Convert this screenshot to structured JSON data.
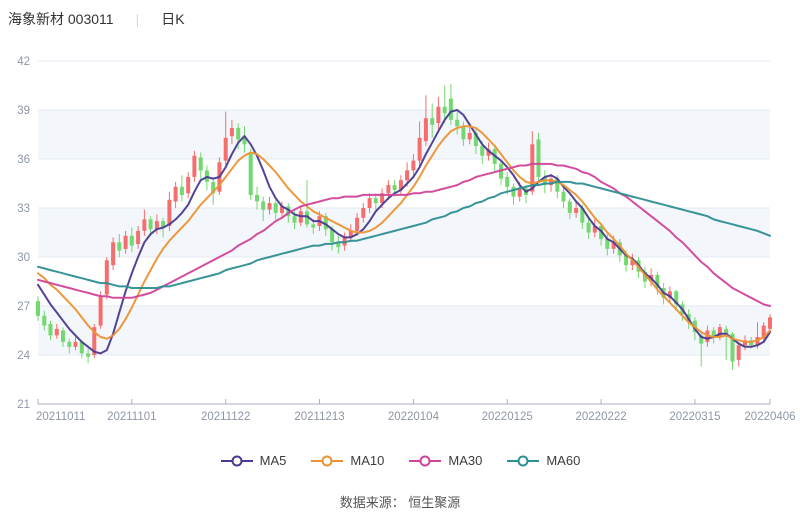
{
  "header": {
    "stock_title": "海象新材 003011",
    "separator": "|",
    "period_label": "日K"
  },
  "footer": {
    "source_label": "数据来源： 恒生聚源"
  },
  "legend": {
    "items": [
      {
        "label": "MA5",
        "color": "#483a8f"
      },
      {
        "label": "MA10",
        "color": "#ed9234"
      },
      {
        "label": "MA30",
        "color": "#d0439a"
      },
      {
        "label": "MA60",
        "color": "#2d8e93"
      }
    ]
  },
  "chart_data": {
    "type": "candlestick",
    "title": "海象新材 003011 日K",
    "convention": "red = close >= open (up), green = close < open (down)",
    "y_axis": {
      "min": 21,
      "max": 42,
      "ticks": [
        21,
        24,
        27,
        30,
        33,
        36,
        39,
        42
      ],
      "shaded_bands": [
        [
          39,
          36
        ],
        [
          33,
          30
        ],
        [
          27,
          24
        ]
      ]
    },
    "x_axis": {
      "tick_labels": [
        "20211011",
        "20211101",
        "20211122",
        "20211213",
        "20220104",
        "20220125",
        "20220222",
        "20220315",
        "20220406"
      ],
      "tick_day_indices": [
        0,
        15,
        30,
        45,
        60,
        75,
        90,
        105,
        117
      ]
    },
    "colors": {
      "up": "#f46e6e",
      "down": "#73d870",
      "ma5": "#483a8f",
      "ma10": "#ed9234",
      "ma30": "#d0439a",
      "ma60": "#2d8e93",
      "grid": "#e3e9f3",
      "band": "#f3f6fb",
      "axis_line": "#aab0bc",
      "axis_label": "#8d96a8"
    },
    "candle_format": "[open, close, low, high]",
    "candles": [
      [
        27.3,
        26.4,
        26.1,
        27.6
      ],
      [
        26.4,
        25.8,
        25.5,
        26.7
      ],
      [
        25.9,
        25.2,
        24.9,
        26.1
      ],
      [
        25.2,
        25.6,
        25.0,
        25.9
      ],
      [
        25.5,
        24.8,
        24.5,
        25.7
      ],
      [
        24.8,
        24.5,
        24.1,
        25.0
      ],
      [
        24.5,
        24.8,
        24.3,
        25.1
      ],
      [
        24.8,
        24.1,
        23.8,
        24.9
      ],
      [
        24.1,
        23.9,
        23.5,
        24.4
      ],
      [
        24.0,
        25.7,
        23.8,
        25.9
      ],
      [
        25.8,
        27.6,
        25.6,
        27.9
      ],
      [
        27.7,
        29.8,
        27.4,
        30.0
      ],
      [
        29.5,
        30.9,
        29.2,
        31.2
      ],
      [
        30.9,
        30.4,
        30.0,
        31.4
      ],
      [
        30.5,
        31.3,
        30.2,
        31.6
      ],
      [
        31.3,
        30.7,
        30.3,
        31.8
      ],
      [
        30.8,
        31.6,
        30.5,
        31.9
      ],
      [
        31.6,
        32.3,
        31.3,
        32.9
      ],
      [
        32.3,
        31.7,
        31.3,
        32.5
      ],
      [
        31.7,
        32.2,
        31.4,
        32.6
      ],
      [
        32.2,
        31.8,
        31.2,
        32.4
      ],
      [
        31.9,
        33.5,
        31.6,
        34.0
      ],
      [
        33.4,
        34.3,
        33.0,
        34.6
      ],
      [
        34.3,
        33.8,
        33.4,
        35.0
      ],
      [
        33.9,
        34.9,
        33.6,
        35.2
      ],
      [
        34.9,
        36.2,
        34.6,
        36.5
      ],
      [
        36.1,
        35.3,
        34.8,
        36.4
      ],
      [
        35.3,
        34.6,
        34.1,
        35.6
      ],
      [
        34.6,
        33.9,
        33.2,
        34.8
      ],
      [
        34.0,
        35.8,
        33.8,
        36.1
      ],
      [
        35.9,
        37.3,
        35.6,
        38.9
      ],
      [
        37.4,
        37.9,
        36.9,
        38.4
      ],
      [
        37.9,
        37.2,
        36.6,
        38.2
      ],
      [
        37.3,
        36.9,
        36.4,
        38.0
      ],
      [
        36.4,
        33.8,
        33.5,
        36.6
      ],
      [
        33.8,
        33.4,
        32.9,
        34.3
      ],
      [
        33.4,
        32.9,
        32.2,
        33.7
      ],
      [
        32.9,
        33.3,
        32.6,
        33.7
      ],
      [
        33.3,
        32.7,
        32.3,
        33.5
      ],
      [
        32.7,
        33.1,
        32.4,
        33.4
      ],
      [
        33.1,
        32.5,
        32.1,
        33.3
      ],
      [
        32.5,
        32.1,
        31.7,
        32.8
      ],
      [
        32.1,
        32.8,
        31.9,
        33.1
      ],
      [
        32.8,
        32.0,
        31.8,
        34.7
      ],
      [
        32.0,
        31.8,
        31.4,
        32.3
      ],
      [
        31.9,
        32.5,
        31.6,
        32.8
      ],
      [
        32.5,
        31.7,
        31.3,
        32.7
      ],
      [
        31.7,
        30.9,
        30.4,
        31.9
      ],
      [
        30.9,
        30.6,
        30.2,
        31.3
      ],
      [
        30.7,
        31.2,
        30.4,
        31.5
      ],
      [
        31.2,
        31.6,
        30.9,
        32.0
      ],
      [
        31.6,
        32.4,
        31.3,
        32.7
      ],
      [
        32.4,
        33.0,
        32.1,
        33.3
      ],
      [
        33.0,
        33.6,
        32.7,
        33.9
      ],
      [
        33.6,
        33.3,
        32.9,
        33.9
      ],
      [
        33.3,
        33.9,
        33.0,
        34.2
      ],
      [
        33.9,
        34.4,
        33.5,
        34.7
      ],
      [
        34.4,
        34.1,
        33.7,
        34.7
      ],
      [
        34.1,
        34.7,
        33.8,
        35.0
      ],
      [
        34.7,
        35.3,
        34.3,
        35.8
      ],
      [
        35.3,
        35.9,
        34.9,
        36.3
      ],
      [
        35.9,
        37.3,
        35.6,
        38.3
      ],
      [
        37.1,
        38.5,
        36.8,
        39.9
      ],
      [
        38.5,
        38.1,
        37.3,
        39.4
      ],
      [
        38.2,
        39.2,
        37.8,
        39.8
      ],
      [
        39.2,
        38.8,
        38.2,
        40.5
      ],
      [
        39.7,
        38.4,
        38.1,
        40.6
      ],
      [
        38.4,
        38.0,
        37.5,
        38.9
      ],
      [
        38.0,
        37.2,
        36.8,
        38.3
      ],
      [
        37.2,
        37.6,
        36.9,
        38.0
      ],
      [
        37.6,
        36.8,
        36.3,
        37.9
      ],
      [
        36.8,
        36.2,
        35.7,
        37.1
      ],
      [
        36.2,
        36.6,
        35.9,
        37.0
      ],
      [
        36.6,
        35.7,
        35.2,
        36.8
      ],
      [
        35.7,
        34.8,
        34.4,
        35.9
      ],
      [
        34.9,
        34.3,
        33.8,
        35.2
      ],
      [
        34.3,
        33.7,
        33.2,
        34.5
      ],
      [
        33.7,
        34.2,
        33.4,
        34.6
      ],
      [
        34.2,
        33.8,
        33.3,
        34.4
      ],
      [
        34.0,
        36.9,
        33.8,
        37.7
      ],
      [
        37.2,
        34.9,
        34.5,
        37.6
      ],
      [
        34.9,
        34.4,
        33.9,
        35.3
      ],
      [
        34.4,
        34.8,
        34.0,
        35.1
      ],
      [
        34.8,
        34.0,
        33.6,
        35.0
      ],
      [
        34.0,
        33.4,
        33.0,
        34.3
      ],
      [
        33.4,
        32.7,
        32.3,
        33.6
      ],
      [
        32.7,
        33.0,
        32.4,
        33.4
      ],
      [
        33.0,
        32.1,
        31.7,
        33.2
      ],
      [
        32.1,
        31.5,
        31.1,
        32.4
      ],
      [
        31.5,
        31.9,
        31.2,
        32.3
      ],
      [
        31.9,
        31.1,
        30.7,
        32.1
      ],
      [
        31.1,
        30.5,
        30.1,
        31.4
      ],
      [
        30.5,
        30.9,
        30.2,
        31.3
      ],
      [
        30.9,
        30.1,
        29.7,
        31.1
      ],
      [
        30.1,
        29.5,
        29.1,
        30.4
      ],
      [
        29.5,
        29.8,
        29.2,
        30.2
      ],
      [
        29.8,
        29.1,
        28.7,
        30.0
      ],
      [
        29.1,
        28.5,
        28.1,
        29.4
      ],
      [
        28.5,
        28.9,
        28.2,
        29.3
      ],
      [
        28.9,
        28.1,
        27.7,
        29.1
      ],
      [
        28.1,
        27.5,
        27.1,
        28.4
      ],
      [
        27.5,
        27.9,
        27.2,
        28.2
      ],
      [
        27.9,
        27.1,
        26.7,
        28.0
      ],
      [
        27.1,
        26.5,
        26.1,
        27.3
      ],
      [
        26.5,
        26.1,
        25.6,
        26.8
      ],
      [
        26.1,
        25.4,
        24.9,
        26.3
      ],
      [
        25.2,
        24.7,
        23.3,
        25.5
      ],
      [
        24.8,
        25.5,
        24.5,
        25.8
      ],
      [
        25.5,
        25.1,
        24.7,
        25.7
      ],
      [
        25.1,
        25.7,
        24.9,
        25.9
      ],
      [
        25.6,
        25.2,
        23.7,
        25.8
      ],
      [
        25.3,
        23.6,
        23.1,
        25.4
      ],
      [
        23.7,
        24.6,
        23.3,
        24.8
      ],
      [
        24.6,
        24.9,
        24.3,
        25.2
      ],
      [
        24.9,
        24.6,
        24.4,
        25.1
      ],
      [
        24.6,
        25.1,
        24.4,
        26.0
      ],
      [
        25.0,
        25.8,
        24.8,
        26.0
      ],
      [
        25.6,
        26.3,
        25.3,
        26.5
      ]
    ],
    "series": [
      {
        "name": "MA5",
        "color": "#483a8f",
        "values": [
          28.3,
          27.7,
          27.1,
          26.6,
          26.1,
          25.6,
          25.2,
          24.8,
          24.5,
          24.2,
          24.1,
          24.3,
          25.3,
          26.6,
          27.9,
          29.0,
          30.0,
          30.9,
          31.4,
          31.7,
          31.8,
          32.0,
          32.3,
          32.7,
          33.2,
          34.0,
          34.7,
          34.9,
          34.8,
          34.9,
          35.5,
          36.3,
          37.0,
          37.4,
          36.9,
          36.2,
          35.3,
          34.3,
          33.6,
          33.1,
          32.9,
          32.6,
          32.5,
          32.5,
          32.2,
          32.2,
          32.0,
          31.7,
          31.4,
          31.2,
          31.2,
          31.4,
          31.7,
          32.2,
          32.8,
          33.2,
          33.6,
          33.9,
          34.1,
          34.5,
          34.9,
          35.5,
          36.3,
          37.0,
          37.7,
          38.4,
          38.9,
          39.0,
          38.7,
          38.1,
          37.5,
          36.9,
          36.5,
          36.2,
          35.9,
          35.5,
          35.0,
          34.4,
          34.0,
          34.2,
          34.6,
          34.9,
          35.0,
          34.8,
          34.3,
          33.9,
          33.4,
          33.0,
          32.4,
          31.9,
          31.6,
          31.1,
          30.9,
          30.5,
          30.1,
          29.9,
          29.5,
          29.0,
          28.7,
          28.3,
          27.8,
          27.6,
          27.2,
          26.8,
          26.2,
          25.6,
          25.1,
          25.0,
          25.1,
          25.3,
          25.3,
          25.0,
          24.7,
          24.5,
          24.5,
          24.6,
          24.8,
          25.4
        ]
      },
      {
        "name": "MA10",
        "color": "#ed9234",
        "values": [
          29.0,
          28.7,
          28.3,
          28.0,
          27.6,
          27.2,
          26.8,
          26.3,
          25.8,
          25.4,
          25.1,
          25.0,
          25.2,
          25.6,
          26.2,
          26.9,
          27.7,
          28.5,
          29.2,
          29.9,
          30.5,
          31.0,
          31.4,
          31.8,
          32.2,
          32.7,
          33.2,
          33.6,
          34.0,
          34.4,
          34.9,
          35.4,
          35.9,
          36.2,
          36.4,
          36.3,
          36.0,
          35.6,
          35.2,
          34.7,
          34.2,
          33.8,
          33.4,
          33.1,
          32.8,
          32.6,
          32.4,
          32.2,
          32.0,
          31.8,
          31.6,
          31.5,
          31.5,
          31.6,
          31.8,
          32.1,
          32.5,
          32.9,
          33.3,
          33.8,
          34.3,
          34.9,
          35.6,
          36.2,
          36.8,
          37.3,
          37.7,
          37.9,
          38.0,
          38.0,
          37.9,
          37.6,
          37.2,
          36.8,
          36.3,
          35.8,
          35.3,
          34.9,
          34.6,
          34.5,
          34.6,
          34.7,
          34.7,
          34.6,
          34.4,
          34.1,
          33.8,
          33.4,
          32.9,
          32.4,
          32.0,
          31.5,
          31.1,
          30.7,
          30.2,
          29.8,
          29.4,
          28.9,
          28.5,
          28.0,
          27.6,
          27.2,
          26.8,
          26.4,
          26.0,
          25.7,
          25.4,
          25.2,
          25.1,
          25.1,
          25.2,
          25.0,
          24.9,
          24.8,
          24.8,
          24.9,
          25.1,
          25.5
        ]
      },
      {
        "name": "MA30",
        "color": "#d0439a",
        "values": [
          28.6,
          28.5,
          28.4,
          28.3,
          28.2,
          28.1,
          28.0,
          27.9,
          27.8,
          27.7,
          27.6,
          27.6,
          27.5,
          27.5,
          27.5,
          27.5,
          27.6,
          27.7,
          27.8,
          28.0,
          28.2,
          28.4,
          28.6,
          28.8,
          29.0,
          29.2,
          29.4,
          29.6,
          29.8,
          30.0,
          30.2,
          30.4,
          30.7,
          30.9,
          31.1,
          31.4,
          31.6,
          31.9,
          32.2,
          32.4,
          32.7,
          32.9,
          33.1,
          33.2,
          33.3,
          33.4,
          33.5,
          33.6,
          33.6,
          33.7,
          33.7,
          33.7,
          33.8,
          33.8,
          33.8,
          33.8,
          33.8,
          33.8,
          33.8,
          33.8,
          33.9,
          33.9,
          34.0,
          34.0,
          34.1,
          34.2,
          34.3,
          34.4,
          34.6,
          34.7,
          34.9,
          35.0,
          35.1,
          35.2,
          35.3,
          35.4,
          35.5,
          35.6,
          35.6,
          35.7,
          35.7,
          35.7,
          35.7,
          35.6,
          35.6,
          35.5,
          35.4,
          35.2,
          35.1,
          34.9,
          34.6,
          34.4,
          34.2,
          33.9,
          33.7,
          33.4,
          33.1,
          32.8,
          32.5,
          32.2,
          31.9,
          31.6,
          31.2,
          30.9,
          30.5,
          30.1,
          29.7,
          29.4,
          29.0,
          28.7,
          28.4,
          28.1,
          27.9,
          27.7,
          27.5,
          27.3,
          27.1,
          27.0
        ]
      },
      {
        "name": "MA60",
        "color": "#2d8e93",
        "values": [
          29.4,
          29.3,
          29.2,
          29.1,
          29.0,
          28.9,
          28.8,
          28.7,
          28.6,
          28.5,
          28.4,
          28.4,
          28.3,
          28.2,
          28.2,
          28.1,
          28.1,
          28.1,
          28.1,
          28.1,
          28.2,
          28.2,
          28.3,
          28.4,
          28.5,
          28.6,
          28.7,
          28.8,
          28.9,
          29.0,
          29.2,
          29.3,
          29.4,
          29.5,
          29.6,
          29.8,
          29.9,
          30.0,
          30.1,
          30.2,
          30.3,
          30.4,
          30.5,
          30.6,
          30.7,
          30.7,
          30.8,
          30.8,
          30.9,
          30.9,
          31.0,
          31.0,
          31.1,
          31.2,
          31.3,
          31.4,
          31.5,
          31.6,
          31.7,
          31.8,
          31.9,
          32.0,
          32.1,
          32.3,
          32.4,
          32.5,
          32.7,
          32.8,
          33.0,
          33.1,
          33.3,
          33.4,
          33.6,
          33.7,
          33.9,
          34.0,
          34.1,
          34.2,
          34.3,
          34.4,
          34.4,
          34.5,
          34.5,
          34.6,
          34.6,
          34.6,
          34.5,
          34.5,
          34.4,
          34.3,
          34.2,
          34.1,
          34.0,
          33.9,
          33.8,
          33.7,
          33.6,
          33.5,
          33.4,
          33.3,
          33.2,
          33.1,
          33.0,
          32.9,
          32.8,
          32.7,
          32.6,
          32.5,
          32.3,
          32.2,
          32.1,
          32.0,
          31.9,
          31.8,
          31.7,
          31.6,
          31.45,
          31.3
        ]
      }
    ]
  }
}
